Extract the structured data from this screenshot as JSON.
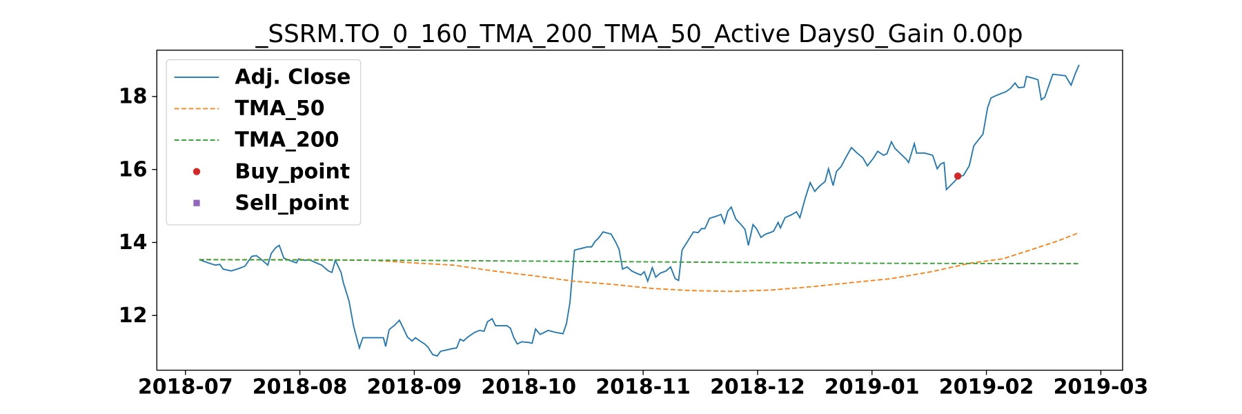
{
  "chart_data": {
    "type": "line",
    "title": "_SSRM.TO_0_160_TMA_200_TMA_50_Active Days0_Gain   0.00p",
    "xlim": [
      -0.25,
      8.19
    ],
    "ylim": [
      10.5,
      19.27
    ],
    "xticks": [
      {
        "value": 0,
        "label": "2018-07"
      },
      {
        "value": 1,
        "label": "2018-08"
      },
      {
        "value": 2,
        "label": "2018-09"
      },
      {
        "value": 3,
        "label": "2018-10"
      },
      {
        "value": 4,
        "label": "2018-11"
      },
      {
        "value": 5,
        "label": "2018-12"
      },
      {
        "value": 6,
        "label": "2019-01"
      },
      {
        "value": 7,
        "label": "2019-02"
      },
      {
        "value": 8,
        "label": "2019-03"
      }
    ],
    "yticks": [
      12,
      14,
      16,
      18
    ],
    "legend": "upper left",
    "series": [
      {
        "name": "Adj. Close",
        "color": "#1f77b4",
        "linestyle": "solid",
        "x": [
          0.12,
          0.2,
          0.26,
          0.3,
          0.33,
          0.4,
          0.47,
          0.52,
          0.55,
          0.58,
          0.62,
          0.65,
          0.68,
          0.72,
          0.75,
          0.79,
          0.82,
          0.86,
          0.91,
          0.97,
          0.99,
          1.04,
          1.08,
          1.13,
          1.19,
          1.25,
          1.28,
          1.31,
          1.36,
          1.38,
          1.43,
          1.47,
          1.52,
          1.55,
          1.65,
          1.73,
          1.75,
          1.78,
          1.83,
          1.87,
          1.91,
          1.94,
          1.98,
          2.01,
          2.05,
          2.09,
          2.12,
          2.16,
          2.2,
          2.23,
          2.29,
          2.33,
          2.37,
          2.4,
          2.43,
          2.46,
          2.5,
          2.53,
          2.57,
          2.61,
          2.64,
          2.68,
          2.71,
          2.76,
          2.81,
          2.84,
          2.87,
          2.9,
          2.94,
          3.0,
          3.03,
          3.06,
          3.1,
          3.17,
          3.23,
          3.3,
          3.33,
          3.36,
          3.4,
          3.49,
          3.51,
          3.55,
          3.58,
          3.61,
          3.65,
          3.72,
          3.76,
          3.79,
          3.82,
          3.86,
          3.9,
          3.94,
          3.98,
          4.01,
          4.04,
          4.08,
          4.11,
          4.15,
          4.2,
          4.24,
          4.28,
          4.31,
          4.34,
          4.38,
          4.41,
          4.44,
          4.48,
          4.51,
          4.54,
          4.58,
          4.65,
          4.68,
          4.71,
          4.74,
          4.77,
          4.81,
          4.85,
          4.89,
          4.92,
          4.96,
          4.99,
          5.03,
          5.07,
          5.11,
          5.14,
          5.18,
          5.2,
          5.24,
          5.29,
          5.34,
          5.37,
          5.42,
          5.46,
          5.5,
          5.54,
          5.59,
          5.62,
          5.66,
          5.69,
          5.73,
          5.77,
          5.82,
          5.87,
          5.92,
          5.96,
          6.01,
          6.05,
          6.1,
          6.13,
          6.17,
          6.2,
          6.25,
          6.3,
          6.32,
          6.37,
          6.39,
          6.46,
          6.53,
          6.57,
          6.6,
          6.63,
          6.65,
          6.72,
          6.76,
          6.8,
          6.85,
          6.89,
          6.97,
          7.01,
          7.04,
          7.08,
          7.12,
          7.17,
          7.21,
          7.25,
          7.28,
          7.33,
          7.35,
          7.41,
          7.45,
          7.48,
          7.51,
          7.58,
          7.69,
          7.74,
          7.78,
          7.81
        ],
        "values": [
          13.53,
          13.44,
          13.38,
          13.4,
          13.27,
          13.22,
          13.29,
          13.35,
          13.49,
          13.62,
          13.64,
          13.57,
          13.49,
          13.38,
          13.7,
          13.86,
          13.92,
          13.57,
          13.51,
          13.44,
          13.55,
          13.51,
          13.53,
          13.46,
          13.38,
          13.22,
          13.18,
          13.51,
          13.18,
          12.9,
          12.39,
          11.7,
          11.11,
          11.39,
          11.39,
          11.39,
          11.15,
          11.61,
          11.74,
          11.87,
          11.61,
          11.41,
          11.3,
          11.39,
          11.3,
          11.22,
          11.13,
          10.93,
          10.89,
          11.02,
          11.06,
          11.09,
          11.11,
          11.35,
          11.3,
          11.39,
          11.48,
          11.54,
          11.59,
          11.57,
          11.83,
          11.91,
          11.72,
          11.72,
          11.72,
          11.65,
          11.39,
          11.22,
          11.28,
          11.26,
          11.24,
          11.63,
          11.48,
          11.59,
          11.54,
          11.5,
          11.78,
          12.35,
          13.79,
          13.86,
          13.88,
          13.88,
          14.03,
          14.12,
          14.29,
          14.23,
          14.01,
          13.81,
          13.27,
          13.33,
          13.22,
          13.16,
          13.11,
          13.2,
          12.94,
          13.31,
          13.05,
          13.16,
          13.22,
          13.33,
          13.01,
          12.96,
          13.79,
          13.99,
          14.14,
          14.29,
          14.27,
          14.38,
          14.38,
          14.66,
          14.73,
          14.77,
          14.53,
          14.86,
          14.97,
          14.64,
          14.51,
          14.36,
          13.92,
          14.49,
          14.38,
          14.14,
          14.23,
          14.27,
          14.31,
          14.55,
          14.4,
          14.68,
          14.75,
          14.84,
          14.68,
          15.25,
          15.64,
          15.4,
          15.54,
          15.67,
          16.02,
          15.56,
          15.95,
          16.08,
          16.32,
          16.6,
          16.45,
          16.32,
          16.1,
          16.3,
          16.5,
          16.39,
          16.43,
          16.76,
          16.58,
          16.43,
          16.28,
          16.19,
          16.71,
          16.45,
          16.45,
          16.39,
          16.02,
          16.15,
          16.19,
          15.45,
          15.67,
          15.8,
          15.84,
          16.1,
          16.65,
          16.97,
          17.69,
          17.96,
          18.02,
          18.07,
          18.13,
          18.22,
          18.37,
          18.24,
          18.26,
          18.55,
          18.5,
          18.46,
          17.91,
          17.98,
          18.61,
          18.57,
          18.31,
          18.65,
          18.87
        ]
      },
      {
        "name": "TMA_50",
        "color": "#ff7f0e",
        "linestyle": "dashed",
        "x": [
          0.12,
          1.16,
          1.65,
          2.0,
          2.34,
          2.69,
          3.04,
          3.39,
          3.74,
          4.08,
          4.43,
          4.78,
          5.13,
          5.48,
          5.82,
          6.17,
          6.52,
          6.87,
          7.14,
          7.42,
          7.63,
          7.81
        ],
        "values": [
          13.53,
          13.53,
          13.51,
          13.44,
          13.38,
          13.22,
          13.09,
          12.94,
          12.85,
          12.74,
          12.68,
          12.66,
          12.7,
          12.79,
          12.9,
          13.01,
          13.2,
          13.44,
          13.55,
          13.83,
          14.05,
          14.27
        ]
      },
      {
        "name": "TMA_200",
        "color": "#2ca02c",
        "linestyle": "dashed",
        "x": [
          0.12,
          2.0,
          4.0,
          6.0,
          7.81
        ],
        "values": [
          13.53,
          13.51,
          13.47,
          13.43,
          13.42
        ]
      },
      {
        "name": "Buy_point",
        "color": "#d62728",
        "marker": "circle",
        "x": [
          6.75
        ],
        "values": [
          15.82
        ]
      },
      {
        "name": "Sell_point",
        "color": "#9467bd",
        "marker": "square",
        "x": [],
        "values": []
      }
    ]
  }
}
